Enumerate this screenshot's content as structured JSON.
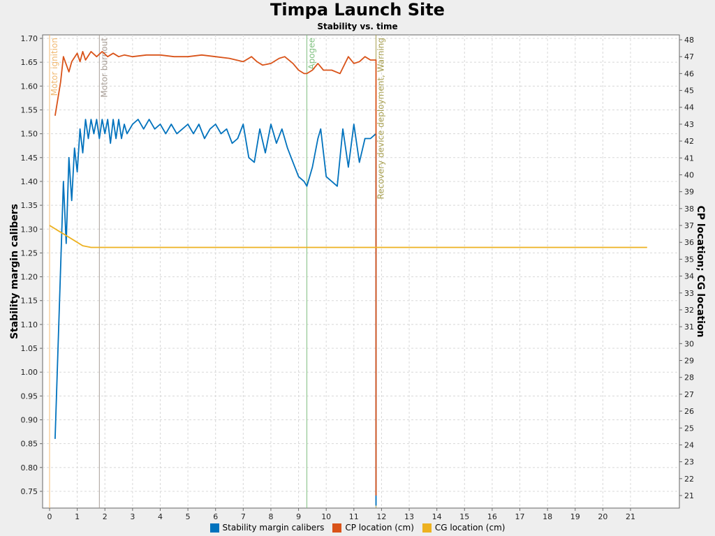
{
  "title": "Timpa Launch Site",
  "subtitle": "Stability vs. time",
  "legend": [
    {
      "label": "Stability margin calibers",
      "color": "#0072bd"
    },
    {
      "label": "CP location (cm)",
      "color": "#d95319"
    },
    {
      "label": "CG location (cm)",
      "color": "#edb120"
    }
  ],
  "chart_data": {
    "type": "line",
    "title": "Timpa Launch Site",
    "subtitle": "Stability vs. time",
    "xlabel": "",
    "ylabel_left": "Stability margin calibers",
    "ylabel_right": "CP location; CG location",
    "xlim": [
      -0.25,
      21.65
    ],
    "ylim_left": [
      0.72,
      1.705
    ],
    "ylim_right": [
      20.3,
      48.2
    ],
    "grid": true,
    "legend_position": "bottom",
    "x_ticks": [
      0,
      1,
      2,
      3,
      4,
      5,
      6,
      7,
      8,
      9,
      10,
      11,
      12,
      13,
      14,
      15,
      16,
      17,
      18,
      19,
      20,
      21
    ],
    "y_ticks_left": [
      "0.75",
      "0.80",
      "0.85",
      "0.90",
      "0.95",
      "1.00",
      "1.05",
      "1.10",
      "1.15",
      "1.20",
      "1.25",
      "1.30",
      "1.35",
      "1.40",
      "1.45",
      "1.50",
      "1.55",
      "1.60",
      "1.65",
      "1.70"
    ],
    "y_ticks_right": [
      21,
      22,
      23,
      24,
      25,
      26,
      27,
      28,
      29,
      30,
      31,
      32,
      33,
      34,
      35,
      36,
      37,
      38,
      39,
      40,
      41,
      42,
      43,
      44,
      45,
      46,
      47,
      48
    ],
    "events": [
      {
        "label": "Motor ignition",
        "x": 0.0,
        "color": "#f0b870"
      },
      {
        "label": "Motor burnout",
        "x": 1.8,
        "color": "#a89e96"
      },
      {
        "label": "Apogee",
        "x": 9.3,
        "color": "#80c080"
      },
      {
        "label": "Recovery device deployment, Warning",
        "x": 11.8,
        "color": "#a8a050"
      }
    ],
    "series": [
      {
        "name": "Stability margin calibers",
        "axis": "left",
        "color": "#0072bd",
        "x": [
          0.2,
          0.5,
          0.6,
          0.7,
          0.8,
          0.9,
          1.0,
          1.1,
          1.2,
          1.3,
          1.4,
          1.5,
          1.6,
          1.7,
          1.8,
          1.9,
          2.0,
          2.1,
          2.2,
          2.3,
          2.4,
          2.5,
          2.6,
          2.7,
          2.8,
          3.0,
          3.2,
          3.4,
          3.6,
          3.8,
          4.0,
          4.2,
          4.4,
          4.6,
          4.8,
          5.0,
          5.2,
          5.4,
          5.6,
          5.8,
          6.0,
          6.2,
          6.4,
          6.6,
          6.8,
          7.0,
          7.2,
          7.4,
          7.6,
          7.8,
          8.0,
          8.2,
          8.4,
          8.6,
          8.8,
          9.0,
          9.2,
          9.3,
          9.5,
          9.7,
          9.8,
          10.0,
          10.2,
          10.4,
          10.6,
          10.8,
          11.0,
          11.2,
          11.4,
          11.6,
          11.8,
          11.8
        ],
        "values": [
          0.86,
          1.4,
          1.27,
          1.45,
          1.36,
          1.47,
          1.42,
          1.51,
          1.46,
          1.53,
          1.49,
          1.53,
          1.5,
          1.53,
          1.49,
          1.53,
          1.5,
          1.53,
          1.48,
          1.53,
          1.49,
          1.53,
          1.49,
          1.52,
          1.5,
          1.52,
          1.53,
          1.51,
          1.53,
          1.51,
          1.52,
          1.5,
          1.52,
          1.5,
          1.51,
          1.52,
          1.5,
          1.52,
          1.49,
          1.51,
          1.52,
          1.5,
          1.51,
          1.48,
          1.49,
          1.52,
          1.45,
          1.44,
          1.51,
          1.46,
          1.52,
          1.48,
          1.51,
          1.47,
          1.44,
          1.41,
          1.4,
          1.39,
          1.43,
          1.49,
          1.51,
          1.41,
          1.4,
          1.39,
          1.51,
          1.43,
          1.52,
          1.44,
          1.49,
          1.49,
          1.5,
          0.72
        ]
      },
      {
        "name": "CP location (cm)",
        "axis": "right",
        "color": "#d95319",
        "x": [
          0.2,
          0.4,
          0.5,
          0.7,
          0.8,
          1.0,
          1.1,
          1.2,
          1.3,
          1.5,
          1.7,
          1.9,
          2.1,
          2.3,
          2.5,
          2.7,
          3.0,
          3.5,
          4.0,
          4.5,
          5.0,
          5.5,
          6.0,
          6.5,
          7.0,
          7.3,
          7.5,
          7.7,
          8.0,
          8.3,
          8.5,
          8.8,
          9.0,
          9.2,
          9.3,
          9.5,
          9.7,
          9.9,
          10.2,
          10.5,
          10.8,
          11.0,
          11.2,
          11.4,
          11.6,
          11.8,
          11.8
        ],
        "values": [
          43.5,
          45.5,
          47.0,
          46.1,
          46.7,
          47.2,
          46.7,
          47.3,
          46.8,
          47.3,
          47.0,
          47.3,
          47.0,
          47.2,
          47.0,
          47.1,
          47.0,
          47.1,
          47.1,
          47.0,
          47.0,
          47.1,
          47.0,
          46.9,
          46.7,
          47.0,
          46.7,
          46.5,
          46.6,
          46.9,
          47.0,
          46.6,
          46.2,
          46.0,
          46.0,
          46.2,
          46.6,
          46.2,
          46.2,
          46.0,
          47.0,
          46.6,
          46.7,
          47.0,
          46.8,
          46.8,
          21.0
        ]
      },
      {
        "name": "CG location (cm)",
        "axis": "right",
        "color": "#edb120",
        "x": [
          0.0,
          0.3,
          0.6,
          0.9,
          1.2,
          1.5,
          1.8,
          2.5,
          5,
          10,
          15,
          21.6
        ],
        "values": [
          37.0,
          36.7,
          36.4,
          36.1,
          35.8,
          35.7,
          35.7,
          35.7,
          35.7,
          35.7,
          35.7,
          35.7
        ]
      }
    ]
  }
}
